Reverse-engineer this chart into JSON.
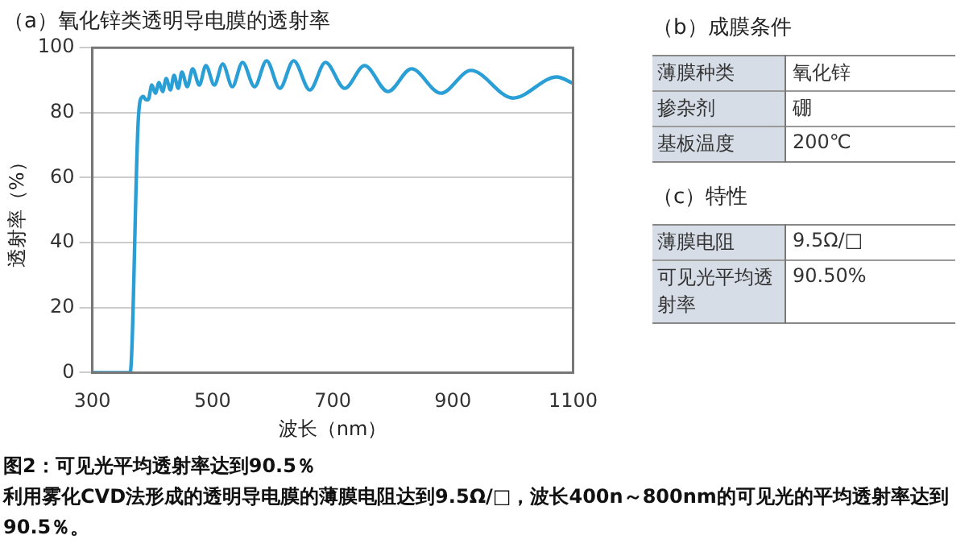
{
  "chart_data": [
    {
      "type": "line",
      "title": "（a）氧化锌类透明导电膜的透射率",
      "xlabel": "波长（nm）",
      "ylabel": "透射率（%）",
      "x": [
        300,
        363,
        376,
        380,
        385,
        389,
        393,
        399,
        405,
        411,
        417,
        423,
        430,
        436,
        443,
        449,
        458,
        467,
        478,
        489,
        503,
        517,
        533,
        550,
        570,
        590,
        612,
        635,
        662,
        688,
        720,
        753,
        792,
        831,
        880,
        930,
        1000,
        1073,
        1100
      ],
      "series": [
        {
          "color": "#2a9fd6",
          "values": [
            0,
            0,
            76,
            84,
            85,
            84,
            84,
            88.5,
            86,
            89.3,
            86.5,
            90.5,
            87,
            91.5,
            87.5,
            92.5,
            88,
            93.5,
            88.5,
            94.5,
            88.5,
            95,
            88,
            95.5,
            88,
            96,
            87.5,
            96,
            87,
            95.5,
            87.5,
            94.5,
            86.5,
            93.5,
            86,
            93,
            84.5,
            91,
            89
          ]
        }
      ],
      "xlim": [
        300,
        1100
      ],
      "xticks": [
        300,
        500,
        700,
        900,
        1100
      ],
      "ylim": [
        0,
        100
      ],
      "yticks": [
        0,
        20,
        40,
        60,
        80,
        100
      ],
      "grid": "y",
      "marker": "none",
      "line_style": "solid",
      "legend": false,
      "annotations": [
        "图2：可见光平均透射率达到90.5％",
        "利用雾化CVD法形成的透明导电膜的薄膜电阻达到9.5Ω/□，波长400n～800nm的可见光的平均透射率达到90.5％。"
      ]
    },
    {
      "type": "other",
      "title": "（b）成膜条件",
      "annotations": [
        "薄膜种类",
        "氧化锌",
        "掺杂剂",
        "硼",
        "基板温度",
        "200℃"
      ]
    },
    {
      "type": "other",
      "title": "（c）特性",
      "annotations": [
        "薄膜电阻",
        "9.5Ω/□",
        "可见光平均透射率",
        "90.50%"
      ]
    }
  ]
}
